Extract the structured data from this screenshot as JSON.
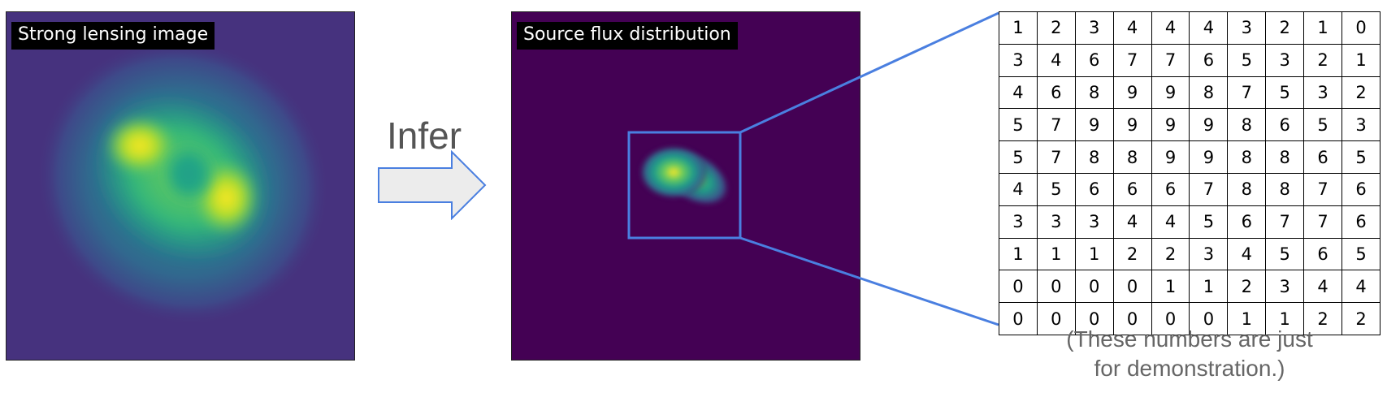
{
  "lens_panel": {
    "label": "Strong lensing image"
  },
  "source_panel": {
    "label": "Source flux distribution"
  },
  "arrow": {
    "label": "Infer"
  },
  "flux_grid": [
    [
      1,
      2,
      3,
      4,
      4,
      4,
      3,
      2,
      1,
      0
    ],
    [
      3,
      4,
      6,
      7,
      7,
      6,
      5,
      3,
      2,
      1
    ],
    [
      4,
      6,
      8,
      9,
      9,
      8,
      7,
      5,
      3,
      2
    ],
    [
      5,
      7,
      9,
      9,
      9,
      9,
      8,
      6,
      5,
      3
    ],
    [
      5,
      7,
      8,
      8,
      9,
      9,
      8,
      8,
      6,
      5
    ],
    [
      4,
      5,
      6,
      6,
      6,
      7,
      8,
      8,
      7,
      6
    ],
    [
      3,
      3,
      3,
      4,
      4,
      5,
      6,
      7,
      7,
      6
    ],
    [
      1,
      1,
      1,
      2,
      2,
      3,
      4,
      5,
      6,
      5
    ],
    [
      0,
      0,
      0,
      0,
      1,
      1,
      2,
      3,
      4,
      4
    ],
    [
      0,
      0,
      0,
      0,
      0,
      0,
      1,
      1,
      2,
      2
    ]
  ],
  "caption": {
    "line1": "(These numbers are just",
    "line2": "for demonstration.)"
  },
  "colors": {
    "zoom_line": "#4a7fe0",
    "arrow_fill": "#ececec",
    "arrow_stroke": "#4a7fe0",
    "viridis_low": "#440154",
    "viridis_high": "#fde725"
  }
}
